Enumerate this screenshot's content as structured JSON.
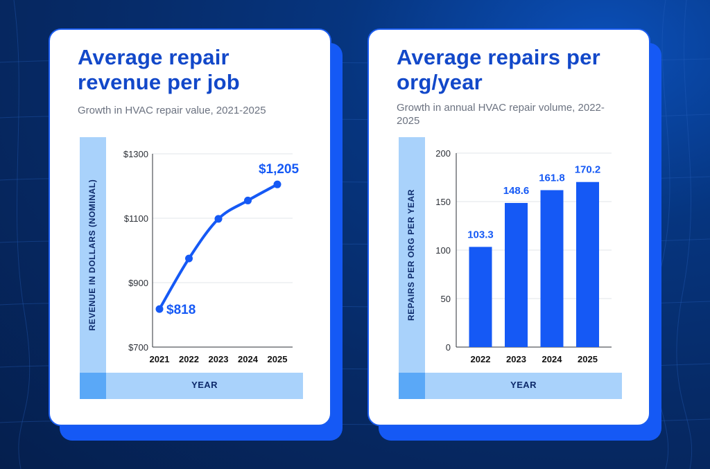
{
  "colors": {
    "accent": "#1559f5",
    "title": "#1248c9",
    "band": "#a9d2fb",
    "grid": "#e2e4e8"
  },
  "chart_data": [
    {
      "type": "line",
      "title": "Average repair revenue per job",
      "subtitle": "Growth in HVAC repair value, 2021-2025",
      "xlabel": "YEAR",
      "ylabel": "REVENUE IN DOLLARS (NOMINAL)",
      "categories": [
        "2021",
        "2022",
        "2023",
        "2024",
        "2025"
      ],
      "values": [
        818,
        975,
        1098,
        1155,
        1205
      ],
      "ylim": [
        700,
        1300
      ],
      "yticks": [
        700,
        900,
        1100,
        1300
      ],
      "ytick_labels": [
        "$700",
        "$900",
        "$1100",
        "$1300"
      ],
      "annotations": [
        {
          "index": 0,
          "text": "$818"
        },
        {
          "index": 4,
          "text": "$1,205"
        }
      ],
      "grid": true
    },
    {
      "type": "bar",
      "title": "Average repairs per org/year",
      "subtitle": "Growth in annual HVAC repair volume, 2022-2025",
      "xlabel": "YEAR",
      "ylabel": "REPAIRS PER ORG PER YEAR",
      "categories": [
        "2022",
        "2023",
        "2024",
        "2025"
      ],
      "values": [
        103.3,
        148.6,
        161.8,
        170.2
      ],
      "data_labels": [
        "103.3",
        "148.6",
        "161.8",
        "170.2"
      ],
      "ylim": [
        0,
        200
      ],
      "yticks": [
        0,
        50,
        100,
        150,
        200
      ],
      "ytick_labels": [
        "0",
        "50",
        "100",
        "150",
        "200"
      ],
      "grid": true
    }
  ]
}
